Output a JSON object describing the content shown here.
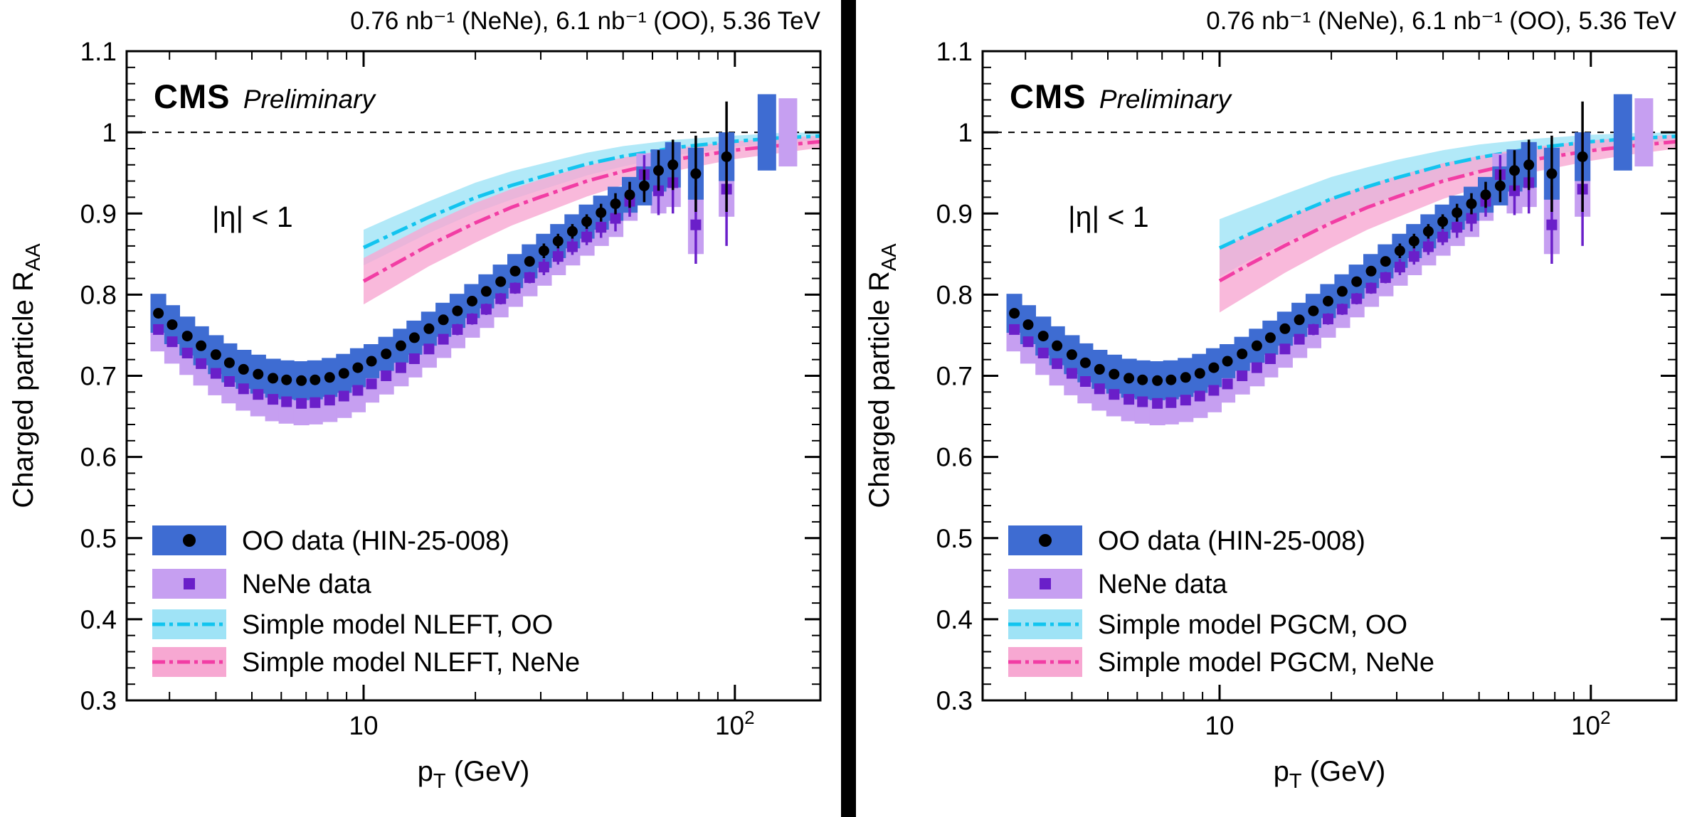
{
  "figure_bg": "#ffffff",
  "divider_color": "#000000",
  "chart_data": {
    "type": "scatter",
    "x_axis": {
      "scale": "log",
      "min": 2.3,
      "max": 170,
      "major_ticks": [
        10,
        100
      ],
      "major_tick_labels": [
        "10",
        "10^2"
      ],
      "title": {
        "pre": "p",
        "sub": "T",
        "post": " (GeV)"
      }
    },
    "y_axis": {
      "min": 0.3,
      "max": 1.1,
      "tick_step": 0.1,
      "title": {
        "pre": "Charged particle R",
        "sub": "AA"
      }
    },
    "reference_line_y": 1.0,
    "pt": [
      2.8,
      3.05,
      3.35,
      3.65,
      4.0,
      4.35,
      4.75,
      5.2,
      5.7,
      6.2,
      6.8,
      7.4,
      8.1,
      8.85,
      9.65,
      10.5,
      11.5,
      12.6,
      13.7,
      15.0,
      16.4,
      17.9,
      19.6,
      21.4,
      23.4,
      25.6,
      28.0,
      30.6,
      33.4,
      36.5,
      39.9,
      43.6,
      47.7,
      52.1,
      57.0,
      62.3,
      68.1,
      78.5,
      95.0
    ],
    "series": [
      {
        "name": "OO data (HIN-25-008)",
        "marker": "circle",
        "marker_color": "#000000",
        "box_color": "#3e6cd2",
        "values": [
          0.777,
          0.763,
          0.749,
          0.737,
          0.726,
          0.716,
          0.708,
          0.702,
          0.697,
          0.695,
          0.694,
          0.695,
          0.698,
          0.703,
          0.71,
          0.718,
          0.727,
          0.737,
          0.747,
          0.758,
          0.769,
          0.78,
          0.792,
          0.804,
          0.816,
          0.829,
          0.841,
          0.854,
          0.866,
          0.878,
          0.89,
          0.901,
          0.912,
          0.923,
          0.934,
          0.953,
          0.96,
          0.949,
          0.97
        ],
        "stat_err": [
          0.003,
          0.003,
          0.003,
          0.003,
          0.003,
          0.003,
          0.003,
          0.003,
          0.003,
          0.003,
          0.003,
          0.003,
          0.003,
          0.003,
          0.003,
          0.004,
          0.004,
          0.004,
          0.004,
          0.004,
          0.004,
          0.006,
          0.006,
          0.006,
          0.006,
          0.006,
          0.006,
          0.009,
          0.009,
          0.009,
          0.009,
          0.011,
          0.013,
          0.016,
          0.02,
          0.025,
          0.031,
          0.047,
          0.068
        ],
        "sys_err": [
          0.024,
          0.024,
          0.024,
          0.024,
          0.024,
          0.024,
          0.024,
          0.024,
          0.024,
          0.024,
          0.024,
          0.024,
          0.024,
          0.024,
          0.024,
          0.021,
          0.021,
          0.021,
          0.021,
          0.021,
          0.021,
          0.021,
          0.021,
          0.021,
          0.021,
          0.021,
          0.021,
          0.021,
          0.021,
          0.021,
          0.021,
          0.021,
          0.021,
          0.022,
          0.024,
          0.026,
          0.028,
          0.032,
          0.03
        ]
      },
      {
        "name": "NeNe data",
        "marker": "square",
        "marker_color": "#6a1fc9",
        "box_color": "#c69ff1",
        "values": [
          0.757,
          0.742,
          0.728,
          0.715,
          0.703,
          0.693,
          0.684,
          0.677,
          0.671,
          0.668,
          0.666,
          0.667,
          0.67,
          0.675,
          0.682,
          0.69,
          0.7,
          0.71,
          0.721,
          0.733,
          0.745,
          0.757,
          0.77,
          0.782,
          0.795,
          0.808,
          0.821,
          0.834,
          0.847,
          0.859,
          0.871,
          0.883,
          0.894,
          0.915,
          0.948,
          0.928,
          0.938,
          0.886,
          0.93
        ],
        "stat_err": [
          0.003,
          0.003,
          0.003,
          0.003,
          0.003,
          0.003,
          0.003,
          0.003,
          0.003,
          0.003,
          0.003,
          0.003,
          0.003,
          0.003,
          0.003,
          0.005,
          0.005,
          0.005,
          0.005,
          0.005,
          0.005,
          0.007,
          0.007,
          0.007,
          0.007,
          0.007,
          0.007,
          0.01,
          0.01,
          0.01,
          0.01,
          0.013,
          0.016,
          0.019,
          0.024,
          0.03,
          0.038,
          0.048,
          0.07
        ],
        "sys_err": [
          0.027,
          0.027,
          0.027,
          0.027,
          0.027,
          0.027,
          0.027,
          0.027,
          0.027,
          0.027,
          0.027,
          0.027,
          0.027,
          0.027,
          0.027,
          0.023,
          0.023,
          0.023,
          0.023,
          0.023,
          0.023,
          0.023,
          0.023,
          0.023,
          0.023,
          0.023,
          0.023,
          0.023,
          0.023,
          0.023,
          0.023,
          0.023,
          0.023,
          0.024,
          0.026,
          0.028,
          0.03,
          0.036,
          0.034
        ]
      }
    ],
    "norm_boxes": [
      {
        "p": 122,
        "half": 0.047,
        "color": "#3e6cd2"
      },
      {
        "p": 139,
        "half": 0.042,
        "color": "#c69ff1"
      }
    ],
    "panels": [
      {
        "header": "0.76 nb⁻¹ (NeNe), 6.1 nb⁻¹ (OO), 5.36 TeV",
        "cms": "CMS",
        "prelim": "Preliminary",
        "eta": "|η| < 1",
        "models": [
          {
            "name": "Simple model NLEFT, OO",
            "band_color": "#9fe3f6",
            "line_color": "#12c4ef",
            "x": [
              10,
              12,
              15,
              20,
              25,
              30,
              40,
              50,
              70,
              100,
              130,
              170
            ],
            "hi": [
              0.88,
              0.896,
              0.915,
              0.938,
              0.952,
              0.961,
              0.975,
              0.983,
              0.991,
              0.996,
              0.999,
              1.0
            ],
            "lo": [
              0.836,
              0.854,
              0.876,
              0.901,
              0.917,
              0.929,
              0.947,
              0.958,
              0.972,
              0.982,
              0.987,
              0.991
            ]
          },
          {
            "name": "Simple model NLEFT, NeNe",
            "band_color": "#f7a8d2",
            "line_color": "#f23da4",
            "x": [
              10,
              12,
              15,
              20,
              25,
              30,
              40,
              50,
              70,
              100,
              130,
              170
            ],
            "hi": [
              0.845,
              0.864,
              0.887,
              0.913,
              0.93,
              0.942,
              0.959,
              0.969,
              0.981,
              0.989,
              0.993,
              0.996
            ],
            "lo": [
              0.788,
              0.809,
              0.835,
              0.864,
              0.885,
              0.899,
              0.921,
              0.935,
              0.953,
              0.967,
              0.974,
              0.981
            ]
          }
        ],
        "legend": [
          {
            "label": "OO data (HIN-25-008)",
            "swatch": "data",
            "series": 0
          },
          {
            "label": "NeNe data",
            "swatch": "data",
            "series": 1
          },
          {
            "label": "Simple model NLEFT, OO",
            "swatch": "band",
            "model": 0
          },
          {
            "label": "Simple model NLEFT, NeNe",
            "swatch": "band",
            "model": 1
          }
        ]
      },
      {
        "header": "0.76 nb⁻¹ (NeNe), 6.1 nb⁻¹ (OO), 5.36 TeV",
        "cms": "CMS",
        "prelim": "Preliminary",
        "eta": "|η| < 1",
        "models": [
          {
            "name": "Simple model PGCM, OO",
            "band_color": "#9fe3f6",
            "line_color": "#12c4ef",
            "x": [
              10,
              12,
              15,
              20,
              25,
              30,
              40,
              50,
              70,
              100,
              130,
              170
            ],
            "hi": [
              0.893,
              0.907,
              0.924,
              0.945,
              0.957,
              0.966,
              0.978,
              0.985,
              0.992,
              0.997,
              0.999,
              1.0
            ],
            "lo": [
              0.822,
              0.842,
              0.864,
              0.891,
              0.909,
              0.922,
              0.941,
              0.953,
              0.969,
              0.98,
              0.986,
              0.99
            ]
          },
          {
            "name": "Simple model PGCM, NeNe",
            "band_color": "#f7a8d2",
            "line_color": "#f23da4",
            "x": [
              10,
              12,
              15,
              20,
              25,
              30,
              40,
              50,
              70,
              100,
              130,
              170
            ],
            "hi": [
              0.856,
              0.874,
              0.894,
              0.919,
              0.935,
              0.946,
              0.962,
              0.971,
              0.982,
              0.99,
              0.994,
              0.997
            ],
            "lo": [
              0.778,
              0.8,
              0.827,
              0.858,
              0.88,
              0.895,
              0.918,
              0.932,
              0.951,
              0.965,
              0.973,
              0.98
            ]
          }
        ],
        "legend": [
          {
            "label": "OO data (HIN-25-008)",
            "swatch": "data",
            "series": 0
          },
          {
            "label": "NeNe data",
            "swatch": "data",
            "series": 1
          },
          {
            "label": "Simple model PGCM, OO",
            "swatch": "band",
            "model": 0
          },
          {
            "label": "Simple model PGCM, NeNe",
            "swatch": "band",
            "model": 1
          }
        ]
      }
    ]
  }
}
